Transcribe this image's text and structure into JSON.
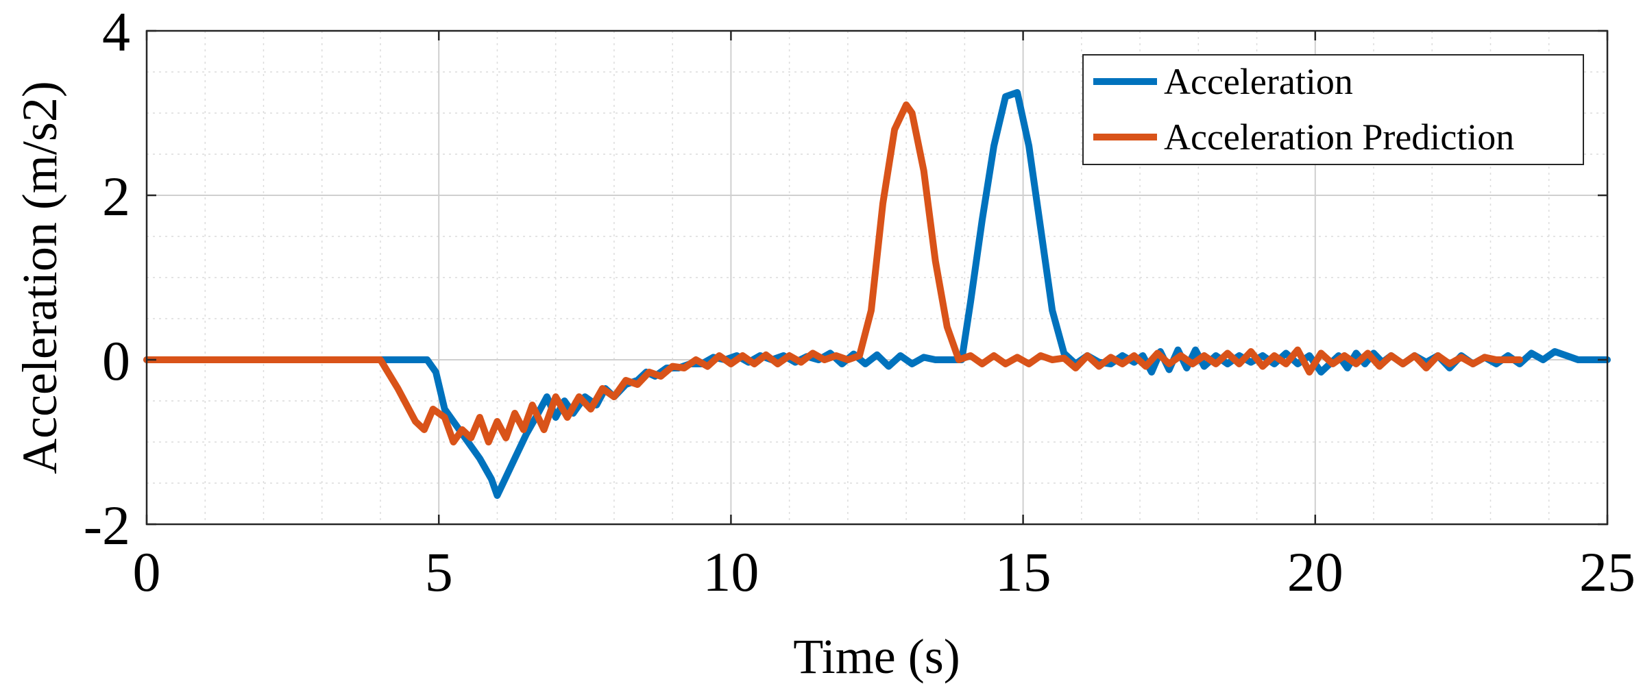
{
  "chart_data": {
    "type": "line",
    "title": "",
    "xlabel": "Time (s)",
    "ylabel": "Acceleration (m/s2)",
    "xlim": [
      0,
      25
    ],
    "ylim": [
      -2,
      4
    ],
    "xticks": [
      0,
      5,
      10,
      15,
      20,
      25
    ],
    "yticks": [
      -2,
      0,
      2,
      4
    ],
    "xtick_labels": [
      "0",
      "5",
      "10",
      "15",
      "20",
      "25"
    ],
    "ytick_labels": [
      "-2",
      "0",
      "2",
      "4"
    ],
    "grid": true,
    "minor_grid": true,
    "legend_position": "top-right",
    "series": [
      {
        "name": "Acceleration",
        "color": "#0072BD",
        "x": [
          0,
          4.0,
          4.8,
          4.95,
          5.1,
          5.3,
          5.5,
          5.7,
          5.9,
          6.0,
          6.1,
          6.3,
          6.5,
          6.7,
          6.85,
          7.0,
          7.15,
          7.3,
          7.5,
          7.7,
          7.85,
          8.0,
          8.2,
          8.4,
          8.55,
          8.7,
          8.9,
          9.1,
          9.3,
          9.5,
          9.7,
          9.9,
          10.1,
          10.3,
          10.5,
          10.7,
          10.9,
          11.1,
          11.3,
          11.5,
          11.7,
          11.9,
          12.1,
          12.3,
          12.5,
          12.7,
          12.9,
          13.1,
          13.3,
          13.5,
          13.7,
          13.95,
          14.1,
          14.3,
          14.5,
          14.7,
          14.9,
          15.1,
          15.3,
          15.5,
          15.7,
          15.9,
          16.1,
          16.3,
          16.5,
          16.7,
          16.9,
          17.05,
          17.2,
          17.35,
          17.5,
          17.65,
          17.8,
          17.95,
          18.1,
          18.3,
          18.5,
          18.7,
          18.9,
          19.1,
          19.3,
          19.5,
          19.7,
          19.9,
          20.1,
          20.25,
          20.4,
          20.55,
          20.7,
          20.85,
          21.0,
          21.15,
          21.3,
          21.5,
          21.7,
          21.9,
          22.1,
          22.3,
          22.5,
          22.7,
          22.9,
          23.1,
          23.3,
          23.5,
          23.7,
          23.9,
          24.1,
          24.5,
          25.0
        ],
        "y": [
          0,
          0,
          0,
          -0.15,
          -0.6,
          -0.8,
          -1.0,
          -1.2,
          -1.45,
          -1.65,
          -1.5,
          -1.2,
          -0.9,
          -0.65,
          -0.45,
          -0.7,
          -0.5,
          -0.65,
          -0.45,
          -0.55,
          -0.35,
          -0.45,
          -0.3,
          -0.25,
          -0.15,
          -0.2,
          -0.1,
          -0.1,
          -0.05,
          -0.05,
          0.03,
          0.0,
          0.05,
          -0.03,
          0.05,
          0.0,
          0.05,
          -0.03,
          0.04,
          0.0,
          0.08,
          -0.05,
          0.07,
          -0.05,
          0.06,
          -0.08,
          0.05,
          -0.05,
          0.03,
          0.0,
          0.0,
          0.0,
          0.7,
          1.7,
          2.6,
          3.2,
          3.25,
          2.6,
          1.6,
          0.6,
          0.08,
          -0.05,
          0.05,
          -0.03,
          -0.05,
          0.05,
          -0.03,
          0.05,
          -0.15,
          0.1,
          -0.12,
          0.12,
          -0.1,
          0.12,
          -0.08,
          0.05,
          -0.05,
          0.05,
          -0.03,
          0.05,
          -0.05,
          0.08,
          -0.05,
          0.05,
          -0.15,
          -0.05,
          0.05,
          -0.1,
          0.08,
          -0.05,
          0.08,
          -0.03,
          0.05,
          -0.05,
          0.05,
          -0.03,
          0.05,
          -0.1,
          0.05,
          -0.05,
          0.03,
          -0.05,
          0.05,
          -0.05,
          0.08,
          0.0,
          0.1,
          0.0,
          0.0
        ]
      },
      {
        "name": "Acceleration Prediction",
        "color": "#D95319",
        "x": [
          0,
          4.0,
          4.3,
          4.6,
          4.75,
          4.9,
          5.1,
          5.25,
          5.4,
          5.55,
          5.7,
          5.85,
          6.0,
          6.15,
          6.3,
          6.45,
          6.6,
          6.8,
          7.0,
          7.2,
          7.4,
          7.6,
          7.8,
          8.0,
          8.2,
          8.4,
          8.6,
          8.8,
          9.0,
          9.2,
          9.4,
          9.6,
          9.8,
          10.0,
          10.2,
          10.4,
          10.6,
          10.8,
          11.0,
          11.2,
          11.4,
          11.6,
          11.8,
          12.0,
          12.2,
          12.4,
          12.6,
          12.8,
          13.0,
          13.1,
          13.3,
          13.5,
          13.7,
          13.9,
          14.1,
          14.3,
          14.5,
          14.7,
          14.9,
          15.1,
          15.3,
          15.5,
          15.7,
          15.9,
          16.1,
          16.3,
          16.5,
          16.7,
          16.9,
          17.1,
          17.3,
          17.5,
          17.7,
          17.9,
          18.1,
          18.3,
          18.5,
          18.7,
          18.9,
          19.1,
          19.3,
          19.5,
          19.7,
          19.9,
          20.1,
          20.3,
          20.5,
          20.7,
          20.9,
          21.1,
          21.3,
          21.5,
          21.7,
          21.9,
          22.1,
          22.3,
          22.5,
          22.7,
          22.9,
          23.1,
          23.3,
          23.5
        ],
        "y": [
          0,
          0,
          -0.35,
          -0.75,
          -0.85,
          -0.6,
          -0.7,
          -1.0,
          -0.85,
          -0.95,
          -0.7,
          -1.0,
          -0.75,
          -0.95,
          -0.65,
          -0.85,
          -0.55,
          -0.85,
          -0.45,
          -0.7,
          -0.45,
          -0.6,
          -0.35,
          -0.45,
          -0.25,
          -0.3,
          -0.15,
          -0.2,
          -0.08,
          -0.1,
          0.0,
          -0.08,
          0.05,
          -0.05,
          0.05,
          -0.05,
          0.06,
          -0.05,
          0.05,
          -0.03,
          0.08,
          0.0,
          0.05,
          0.0,
          0.05,
          0.6,
          1.9,
          2.8,
          3.1,
          3.0,
          2.3,
          1.2,
          0.4,
          0.0,
          0.05,
          -0.05,
          0.05,
          -0.05,
          0.03,
          -0.05,
          0.05,
          0.0,
          0.02,
          -0.1,
          0.05,
          -0.08,
          0.03,
          -0.05,
          0.05,
          -0.08,
          0.08,
          -0.05,
          0.05,
          -0.05,
          0.05,
          -0.05,
          0.08,
          -0.05,
          0.1,
          -0.08,
          0.05,
          -0.05,
          0.12,
          -0.15,
          0.08,
          -0.05,
          0.05,
          -0.05,
          0.08,
          -0.08,
          0.05,
          -0.05,
          0.05,
          -0.1,
          0.05,
          -0.05,
          0.03,
          -0.05,
          0.03,
          0.0,
          0.0,
          0.0
        ]
      }
    ]
  }
}
